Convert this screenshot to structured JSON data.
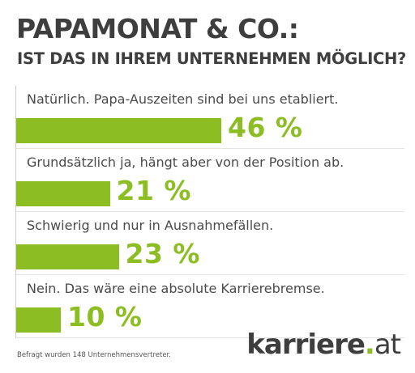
{
  "title": "PAPAMONAT & CO.:",
  "subtitle": "IST DAS IN IHREM UNTERNEHMEN MÖGLICH?",
  "footnote": "Befragt wurden 148 Unternehmensvertreter.",
  "logo": {
    "name": "karriere",
    "dot": ".",
    "tld": "at"
  },
  "colors": {
    "accent": "#8cbd22",
    "text": "#3e3e3e"
  },
  "chart_data": {
    "type": "bar",
    "orientation": "horizontal",
    "title": "PAPAMONAT & CO.:",
    "subtitle": "IST DAS IN IHREM UNTERNEHMEN MÖGLICH?",
    "categories": [
      "Natürlich. Papa-Auszeiten sind bei uns etabliert.",
      "Grundsätzlich ja, hängt aber von der Position ab.",
      "Schwierig und nur in Ausnahmefällen.",
      "Nein. Das wäre eine absolute Karrierebremse."
    ],
    "values": [
      46,
      21,
      23,
      10
    ],
    "value_labels": [
      "46 %",
      "21 %",
      "23 %",
      "10 %"
    ],
    "unit": "%",
    "grid": false,
    "legend": "none"
  }
}
